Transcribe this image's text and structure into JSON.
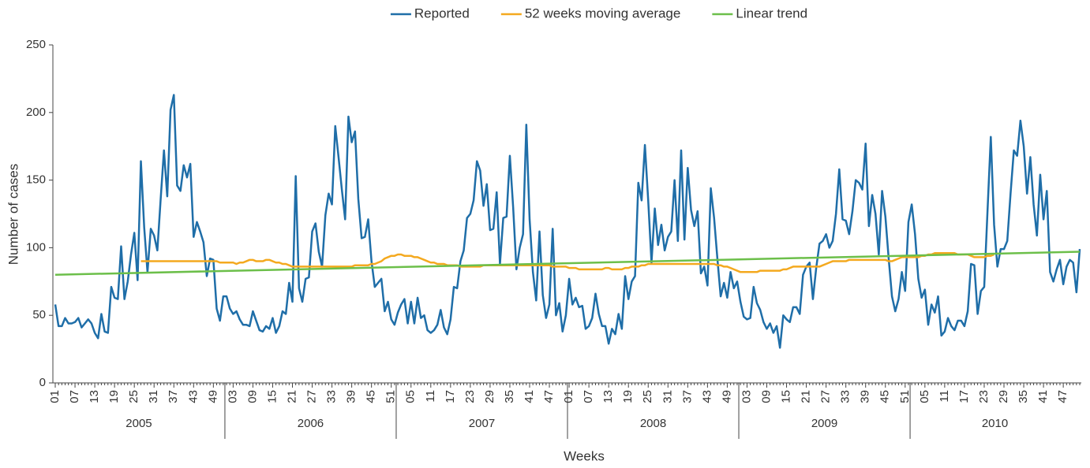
{
  "chart_data": {
    "type": "line",
    "x_label": "Weeks",
    "y_label": "Number of cases",
    "ylim": [
      0,
      250
    ],
    "yticks": [
      0,
      50,
      100,
      150,
      200,
      250
    ],
    "grid": false,
    "legend": "top",
    "groups": [
      "2005",
      "2006",
      "2007",
      "2008",
      "2009",
      "2010"
    ],
    "categories": [
      "01",
      null,
      null,
      null,
      null,
      null,
      "07",
      null,
      null,
      null,
      null,
      null,
      "13",
      null,
      null,
      null,
      null,
      null,
      "19",
      null,
      null,
      null,
      null,
      null,
      "25",
      null,
      null,
      null,
      null,
      null,
      "31",
      null,
      null,
      null,
      null,
      null,
      "37",
      null,
      null,
      null,
      null,
      null,
      "43",
      null,
      null,
      null,
      null,
      null,
      "49",
      null,
      null,
      null,
      null,
      null,
      "03",
      null,
      null,
      null,
      null,
      null,
      "09",
      null,
      null,
      null,
      null,
      null,
      "15",
      null,
      null,
      null,
      null,
      null,
      "21",
      null,
      null,
      null,
      null,
      null,
      "27",
      null,
      null,
      null,
      null,
      null,
      "33",
      null,
      null,
      null,
      null,
      null,
      "39",
      null,
      null,
      null,
      null,
      null,
      "45",
      null,
      null,
      null,
      null,
      null,
      "51",
      null,
      null,
      null,
      null,
      null,
      "05",
      null,
      null,
      null,
      null,
      null,
      "11",
      null,
      null,
      null,
      null,
      null,
      "17",
      null,
      null,
      null,
      null,
      null,
      "23",
      null,
      null,
      null,
      null,
      null,
      "29",
      null,
      null,
      null,
      null,
      null,
      "35",
      null,
      null,
      null,
      null,
      null,
      "41",
      null,
      null,
      null,
      null,
      null,
      "47",
      null,
      null,
      null,
      null,
      null,
      "01",
      null,
      null,
      null,
      null,
      null,
      "07",
      null,
      null,
      null,
      null,
      null,
      "13",
      null,
      null,
      null,
      null,
      null,
      "19",
      null,
      null,
      null,
      null,
      null,
      "25",
      null,
      null,
      null,
      null,
      null,
      "31",
      null,
      null,
      null,
      null,
      null,
      "37",
      null,
      null,
      null,
      null,
      null,
      "43",
      null,
      null,
      null,
      null,
      null,
      "49",
      null,
      null,
      null,
      null,
      null,
      "03",
      null,
      null,
      null,
      null,
      null,
      "09",
      null,
      null,
      null,
      null,
      null,
      "15",
      null,
      null,
      null,
      null,
      null,
      "21",
      null,
      null,
      null,
      null,
      null,
      "27",
      null,
      null,
      null,
      null,
      null,
      "33",
      null,
      null,
      null,
      null,
      null,
      "39",
      null,
      null,
      null,
      null,
      null,
      "45",
      null,
      null,
      null,
      null,
      null,
      "51",
      null,
      null,
      null,
      null,
      null,
      "05",
      null,
      null,
      null,
      null,
      null,
      "11",
      null,
      null,
      null,
      null,
      null,
      "17",
      null,
      null,
      null,
      null,
      null,
      "23",
      null,
      null,
      null,
      null,
      null,
      "29",
      null,
      null,
      null,
      null,
      null,
      "35",
      null,
      null,
      null,
      null,
      null,
      "41",
      null,
      null,
      null,
      null,
      null,
      "47",
      null,
      null,
      null,
      null,
      null
    ],
    "series": [
      {
        "name": "Reported",
        "color": "#1f6ea8",
        "values": [
          58,
          42,
          42,
          48,
          44,
          44,
          45,
          48,
          41,
          44,
          47,
          44,
          37,
          33,
          51,
          38,
          37,
          71,
          63,
          62,
          101,
          62,
          75,
          95,
          111,
          76,
          164,
          115,
          82,
          114,
          109,
          98,
          136,
          172,
          138,
          202,
          213,
          146,
          142,
          161,
          152,
          162,
          108,
          119,
          112,
          104,
          79,
          92,
          91,
          55,
          46,
          64,
          64,
          55,
          51,
          53,
          47,
          43,
          43,
          42,
          53,
          46,
          39,
          38,
          42,
          40,
          48,
          37,
          42,
          53,
          51,
          74,
          60,
          153,
          70,
          60,
          77,
          78,
          112,
          118,
          97,
          86,
          124,
          140,
          132,
          190,
          167,
          143,
          121,
          197,
          178,
          186,
          136,
          107,
          108,
          121,
          90,
          71,
          74,
          77,
          53,
          60,
          47,
          43,
          52,
          58,
          62,
          44,
          60,
          44,
          63,
          48,
          50,
          39,
          37,
          39,
          43,
          54,
          41,
          36,
          47,
          71,
          70,
          90,
          98,
          122,
          125,
          135,
          164,
          157,
          131,
          147,
          113,
          114,
          141,
          88,
          122,
          123,
          168,
          130,
          84,
          100,
          110,
          191,
          121,
          82,
          61,
          112,
          65,
          48,
          58,
          114,
          50,
          59,
          38,
          50,
          77,
          58,
          63,
          56,
          57,
          40,
          42,
          48,
          66,
          51,
          42,
          42,
          29,
          40,
          36,
          51,
          40,
          79,
          62,
          75,
          79,
          148,
          135,
          176,
          135,
          89,
          129,
          102,
          117,
          98,
          108,
          112,
          150,
          105,
          172,
          106,
          159,
          128,
          116,
          127,
          81,
          86,
          72,
          144,
          122,
          92,
          64,
          74,
          63,
          82,
          70,
          75,
          60,
          49,
          47,
          48,
          71,
          59,
          54,
          45,
          40,
          44,
          37,
          42,
          26,
          50,
          47,
          45,
          56,
          56,
          51,
          80,
          86,
          89,
          62,
          85,
          103,
          105,
          110,
          100,
          105,
          125,
          158,
          121,
          120,
          110,
          127,
          150,
          148,
          143,
          177,
          116,
          139,
          125,
          95,
          142,
          123,
          92,
          64,
          53,
          62,
          82,
          68,
          119,
          132,
          110,
          77,
          63,
          69,
          43,
          58,
          52,
          64,
          35,
          38,
          48,
          42,
          39,
          46,
          46,
          42,
          53,
          88,
          87,
          51,
          68,
          71,
          127,
          182,
          117,
          86,
          99,
          99,
          105,
          140,
          172,
          168,
          194,
          175,
          140,
          167,
          132,
          109,
          154,
          121,
          142,
          82,
          75,
          84,
          91,
          73,
          86,
          91,
          89,
          67,
          99
        ]
      },
      {
        "name": "52 weeks moving average",
        "color": "#f4a91f",
        "values": [
          null,
          null,
          null,
          null,
          null,
          null,
          null,
          null,
          null,
          null,
          null,
          null,
          null,
          null,
          null,
          null,
          null,
          null,
          null,
          null,
          null,
          null,
          null,
          null,
          null,
          null,
          90,
          90,
          90,
          90,
          90,
          90,
          90,
          90,
          90,
          90,
          90,
          90,
          90,
          90,
          90,
          90,
          90,
          90,
          90,
          90,
          90,
          90,
          90,
          90,
          89,
          89,
          89,
          89,
          89,
          88,
          89,
          89,
          90,
          91,
          91,
          90,
          90,
          90,
          91,
          91,
          90,
          89,
          89,
          88,
          88,
          87,
          86,
          86,
          86,
          86,
          86,
          86,
          86,
          86,
          86,
          86,
          86,
          86,
          86,
          86,
          86,
          86,
          86,
          86,
          86,
          87,
          87,
          87,
          87,
          87,
          88,
          88,
          89,
          90,
          92,
          93,
          94,
          94,
          95,
          95,
          94,
          94,
          94,
          93,
          93,
          92,
          91,
          90,
          89,
          89,
          88,
          88,
          88,
          87,
          87,
          87,
          87,
          86,
          86,
          86,
          86,
          86,
          86,
          86,
          87,
          87,
          87,
          87,
          87,
          87,
          87,
          87,
          87,
          87,
          87,
          87,
          87,
          87,
          87,
          87,
          87,
          87,
          87,
          87,
          87,
          86,
          86,
          86,
          86,
          86,
          85,
          85,
          85,
          84,
          84,
          84,
          84,
          84,
          84,
          84,
          84,
          85,
          85,
          84,
          84,
          84,
          84,
          85,
          85,
          86,
          86,
          86,
          87,
          87,
          88,
          88,
          88,
          88,
          88,
          88,
          88,
          88,
          88,
          88,
          88,
          88,
          88,
          88,
          88,
          88,
          88,
          88,
          88,
          88,
          88,
          87,
          87,
          86,
          86,
          85,
          84,
          83,
          82,
          82,
          82,
          82,
          82,
          82,
          83,
          83,
          83,
          83,
          83,
          83,
          83,
          84,
          84,
          85,
          86,
          86,
          86,
          86,
          86,
          86,
          86,
          86,
          86,
          87,
          88,
          89,
          90,
          90,
          90,
          90,
          90,
          91,
          91,
          91,
          91,
          91,
          91,
          91,
          91,
          91,
          91,
          91,
          91,
          90,
          90,
          91,
          92,
          93,
          93,
          93,
          93,
          93,
          93,
          94,
          94,
          95,
          95,
          96,
          96,
          96,
          96,
          96,
          96,
          96,
          95,
          95,
          95,
          95,
          94,
          93,
          93,
          93,
          93,
          94,
          94,
          95,
          null,
          null,
          null,
          null,
          null,
          null,
          null,
          null,
          null,
          null,
          null,
          null,
          null,
          null,
          null,
          null,
          null,
          null,
          null,
          null,
          null,
          null,
          null,
          null,
          null,
          null
        ]
      }
    ],
    "trend": {
      "name": "Linear trend",
      "color": "#6cbf4a",
      "start_value": 80,
      "end_value": 97
    }
  }
}
